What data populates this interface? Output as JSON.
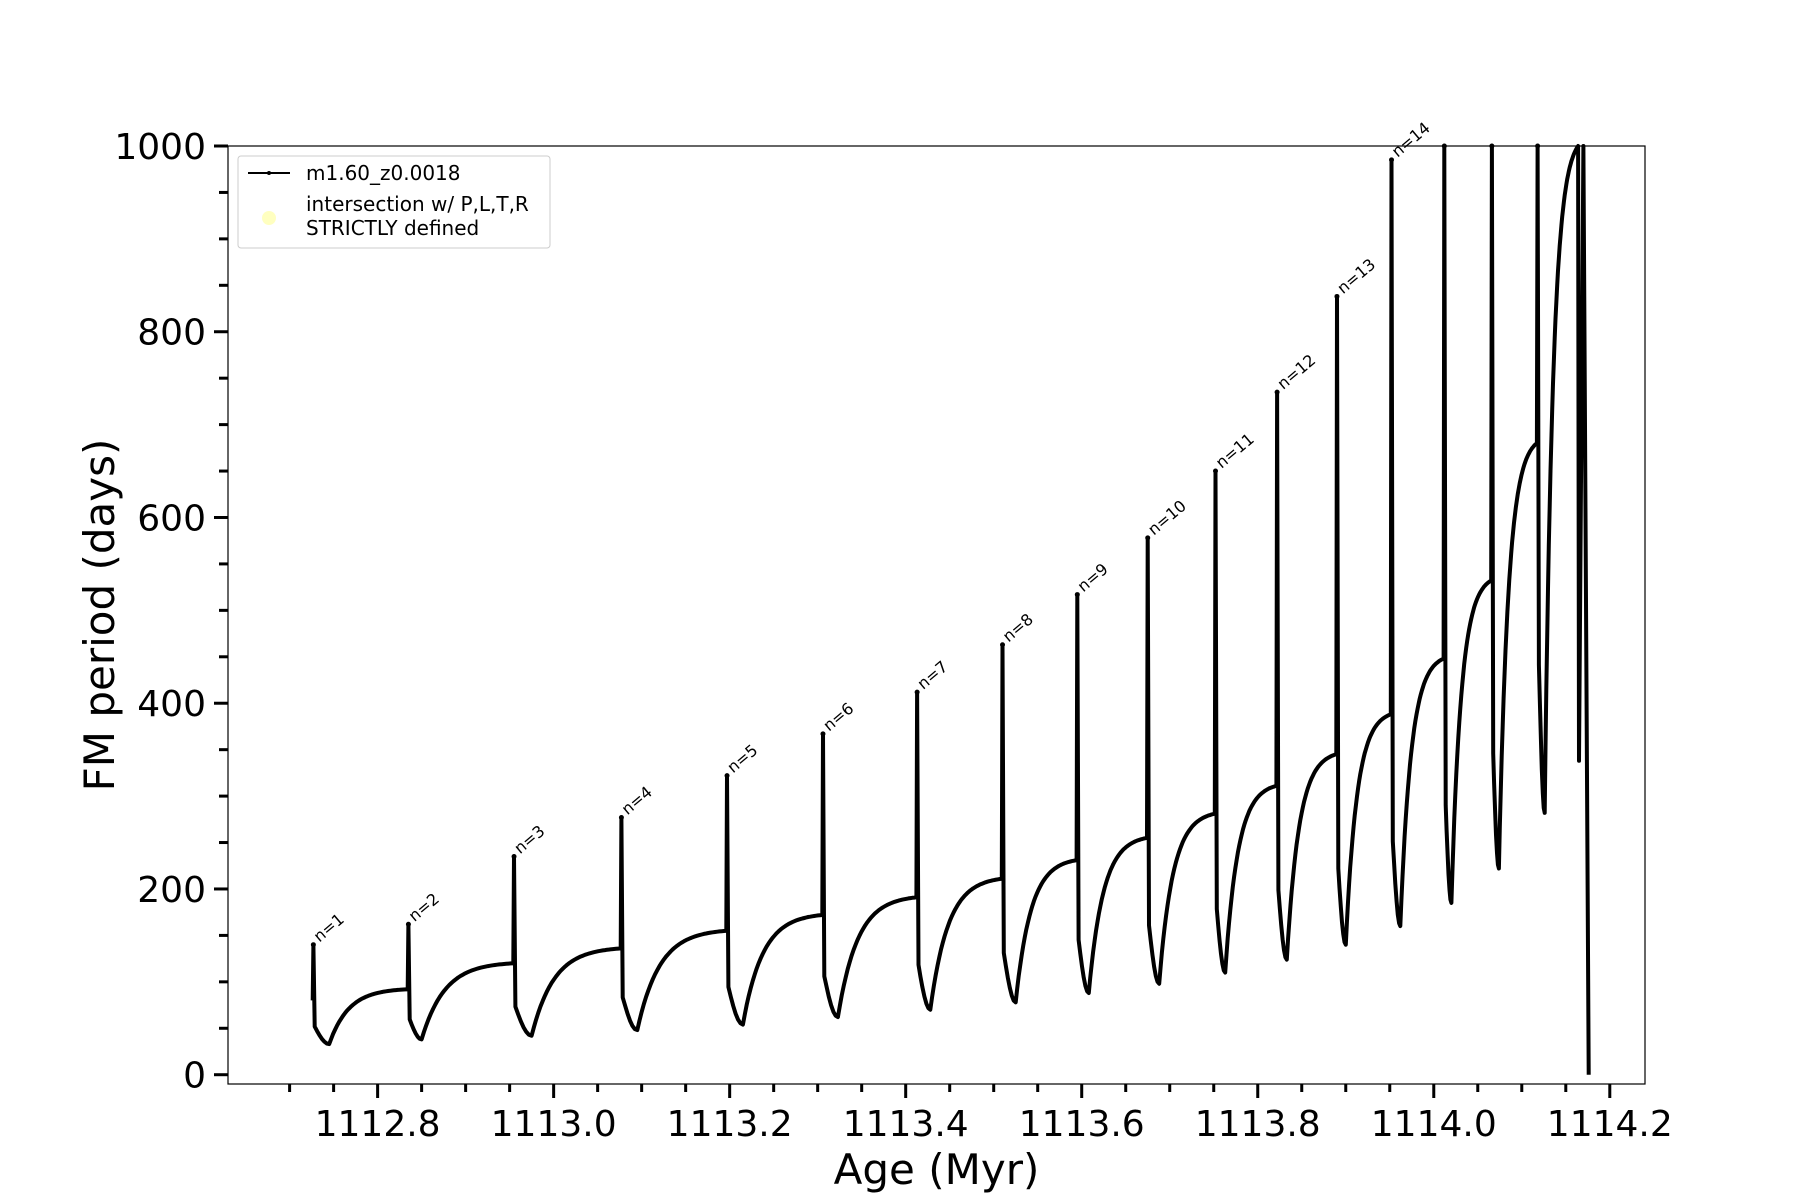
{
  "chart_data": {
    "type": "line",
    "title": "",
    "xlabel": "Age (Myr)",
    "ylabel": "FM period (days)",
    "xlim": [
      1112.63,
      1114.24
    ],
    "ylim": [
      -10,
      1000
    ],
    "xticks": [
      1112.8,
      1113.0,
      1113.2,
      1113.4,
      1113.6,
      1113.8,
      1114.0,
      1114.2
    ],
    "xtick_labels": [
      "1112.8",
      "1113.0",
      "1113.2",
      "1113.4",
      "1113.6",
      "1113.8",
      "1114.0",
      "1114.2"
    ],
    "yticks": [
      0,
      200,
      400,
      600,
      800,
      1000
    ],
    "ytick_labels": [
      "0",
      "200",
      "400",
      "600",
      "800",
      "1000"
    ],
    "grid": false,
    "legend_position": "top-left",
    "legend": [
      {
        "label": "m1.60_z0.0018",
        "marker": "line-dot",
        "color": "#000000"
      },
      {
        "label_lines": [
          "intersection w/ P,L,T,R",
          "STRICTLY defined"
        ],
        "marker": "circle",
        "color": "#ffffc0"
      }
    ],
    "series": [
      {
        "name": "m1.60_z0.0018",
        "color": "#000000",
        "pulses": [
          {
            "start": 1112.727,
            "peak": 140,
            "min_x": 1112.745,
            "min_y": 33,
            "end_y": 92
          },
          {
            "start": 1112.835,
            "peak": 162,
            "min_x": 1112.85,
            "min_y": 38,
            "end_y": 120
          },
          {
            "start": 1112.955,
            "peak": 235,
            "min_x": 1112.975,
            "min_y": 42,
            "end_y": 136
          },
          {
            "start": 1113.077,
            "peak": 277,
            "min_x": 1113.095,
            "min_y": 48,
            "end_y": 155
          },
          {
            "start": 1113.197,
            "peak": 322,
            "min_x": 1113.215,
            "min_y": 54,
            "end_y": 172
          },
          {
            "start": 1113.306,
            "peak": 367,
            "min_x": 1113.323,
            "min_y": 62,
            "end_y": 191
          },
          {
            "start": 1113.413,
            "peak": 412,
            "min_x": 1113.428,
            "min_y": 70,
            "end_y": 211
          },
          {
            "start": 1113.51,
            "peak": 463,
            "min_x": 1113.525,
            "min_y": 78,
            "end_y": 231
          },
          {
            "start": 1113.595,
            "peak": 517,
            "min_x": 1113.608,
            "min_y": 88,
            "end_y": 255
          },
          {
            "start": 1113.675,
            "peak": 578,
            "min_x": 1113.688,
            "min_y": 98,
            "end_y": 281
          },
          {
            "start": 1113.752,
            "peak": 650,
            "min_x": 1113.763,
            "min_y": 110,
            "end_y": 311
          },
          {
            "start": 1113.822,
            "peak": 735,
            "min_x": 1113.833,
            "min_y": 124,
            "end_y": 345
          },
          {
            "start": 1113.89,
            "peak": 838,
            "min_x": 1113.9,
            "min_y": 140,
            "end_y": 388
          },
          {
            "start": 1113.952,
            "peak": 985,
            "min_x": 1113.962,
            "min_y": 160,
            "end_y": 448
          },
          {
            "start": 1114.012,
            "peak": 1000,
            "min_x": 1114.02,
            "min_y": 185,
            "end_y": 532
          },
          {
            "start": 1114.066,
            "peak": 1000,
            "min_x": 1114.074,
            "min_y": 222,
            "end_y": 680
          },
          {
            "start": 1114.118,
            "peak": 1000,
            "min_x": 1114.126,
            "min_y": 282,
            "end_y": 1000
          }
        ],
        "final_drop": [
          {
            "x": 1114.165,
            "y": 338
          },
          {
            "x": 1114.17,
            "y": 1000
          },
          {
            "x": 1114.176,
            "y": 0
          }
        ]
      }
    ],
    "annotations": [
      {
        "text": "n=1",
        "x": 1112.727,
        "y": 140
      },
      {
        "text": "n=2",
        "x": 1112.835,
        "y": 162
      },
      {
        "text": "n=3",
        "x": 1112.955,
        "y": 235
      },
      {
        "text": "n=4",
        "x": 1113.077,
        "y": 277
      },
      {
        "text": "n=5",
        "x": 1113.197,
        "y": 322
      },
      {
        "text": "n=6",
        "x": 1113.306,
        "y": 367
      },
      {
        "text": "n=7",
        "x": 1113.413,
        "y": 412
      },
      {
        "text": "n=8",
        "x": 1113.51,
        "y": 463
      },
      {
        "text": "n=9",
        "x": 1113.595,
        "y": 517
      },
      {
        "text": "n=10",
        "x": 1113.675,
        "y": 578
      },
      {
        "text": "n=11",
        "x": 1113.752,
        "y": 650
      },
      {
        "text": "n=12",
        "x": 1113.822,
        "y": 735
      },
      {
        "text": "n=13",
        "x": 1113.89,
        "y": 838
      },
      {
        "text": "n=14",
        "x": 1113.952,
        "y": 985
      }
    ]
  }
}
